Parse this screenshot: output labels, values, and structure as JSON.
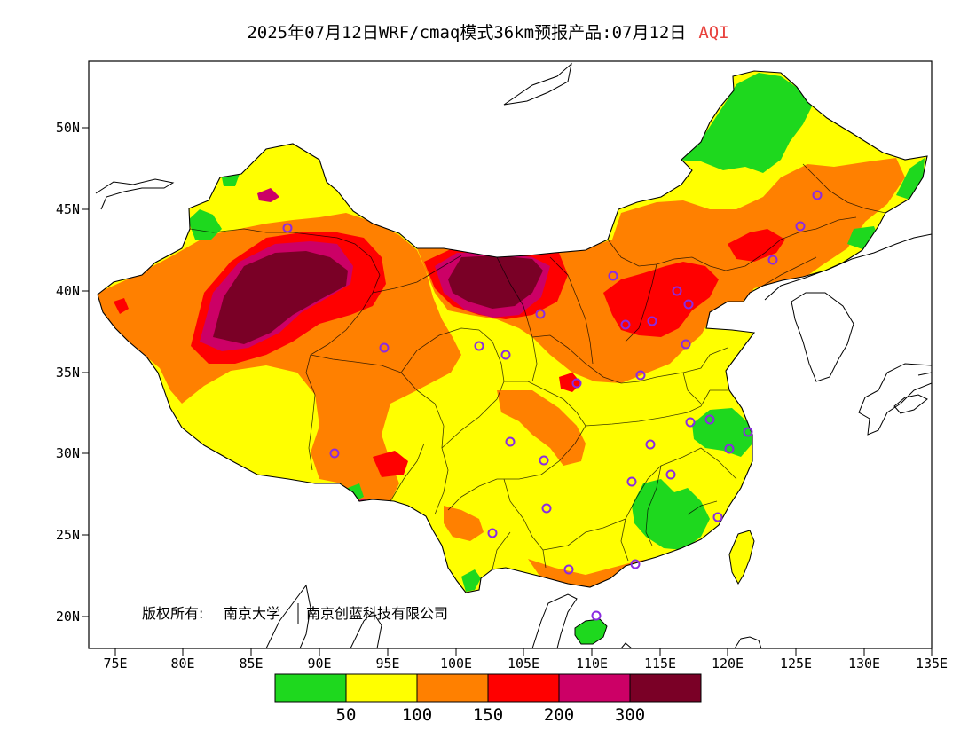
{
  "title": {
    "main": "2025年07月12日WRF/cmaq模式36km预报产品:07月12日",
    "variable": "AQI"
  },
  "map": {
    "lat_labels": [
      "50N",
      "45N",
      "40N",
      "35N",
      "30N",
      "25N",
      "20N"
    ],
    "lon_labels": [
      "75E",
      "80E",
      "85E",
      "90E",
      "95E",
      "100E",
      "105E",
      "110E",
      "115E",
      "120E",
      "125E",
      "130E",
      "135E"
    ],
    "lat_range": [
      18,
      54
    ],
    "lon_range": [
      73,
      135
    ],
    "copyright_owner": "版权所有:",
    "copyright_org1": "南京大学",
    "copyright_org2": "南京创蓝科技有限公司"
  },
  "legend": {
    "bin_colors": [
      "#1ed81e",
      "#ffff00",
      "#ff8000",
      "#ff0000",
      "#cc0066",
      "#7a0026"
    ],
    "thresholds": [
      "50",
      "100",
      "150",
      "200",
      "300"
    ]
  }
}
